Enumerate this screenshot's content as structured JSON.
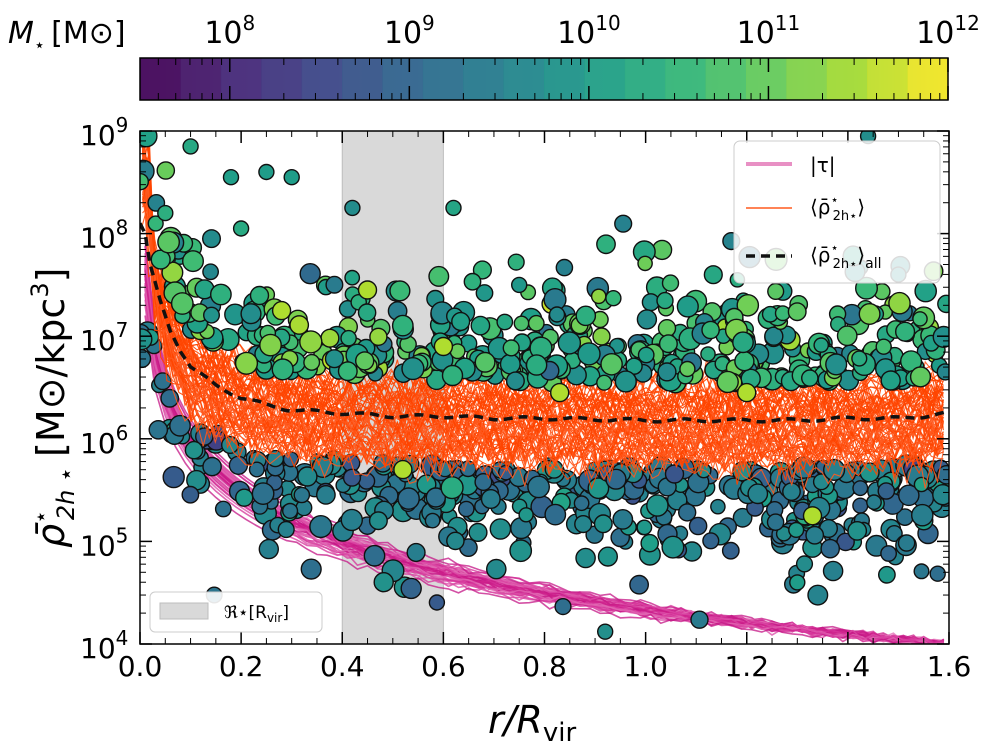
{
  "chart_data": {
    "type": "scatter",
    "title": "",
    "xlabel": "r/R",
    "xlabel_sub": "vir",
    "ylabel": "[M⊙/kpc",
    "ylabel_symbol": "ρ̄",
    "ylabel_sup": "⋆",
    "ylabel_sub": "2h ⋆",
    "ylabel_exp": "3",
    "ylabel_close": "]",
    "xlim": [
      0.0,
      1.6
    ],
    "ylim_log10": [
      4,
      9
    ],
    "x_ticks": [
      "0.0",
      "0.2",
      "0.4",
      "0.6",
      "0.8",
      "1.0",
      "1.2",
      "1.4",
      "1.6"
    ],
    "y_ticks": [
      {
        "base": "10",
        "exp": "4"
      },
      {
        "base": "10",
        "exp": "5"
      },
      {
        "base": "10",
        "exp": "6"
      },
      {
        "base": "10",
        "exp": "7"
      },
      {
        "base": "10",
        "exp": "8"
      },
      {
        "base": "10",
        "exp": "9"
      }
    ],
    "colorbar": {
      "label": "M",
      "label_sub": "⋆",
      "label_unit": "[M⊙]",
      "range_log10": [
        7.5,
        12
      ],
      "ticks": [
        {
          "base": "10",
          "exp": "8"
        },
        {
          "base": "10",
          "exp": "9"
        },
        {
          "base": "10",
          "exp": "10"
        },
        {
          "base": "10",
          "exp": "11"
        },
        {
          "base": "10",
          "exp": "12"
        }
      ],
      "colormap": "viridis"
    },
    "shaded_region": {
      "x_range": [
        0.4,
        0.6
      ],
      "label": "ℜ⋆[R",
      "label_sub": "vir",
      "label_close": "]",
      "color": "#d9d9d9"
    },
    "series": [
      {
        "name": "|τ|",
        "kind": "lines",
        "color": "#cc1f8a",
        "note": "tidal density profiles, steep decline from ~1e7 at r=0.05 to ~1e4 at r=1.6"
      },
      {
        "name": "⟨ρ̄⋆ 2h⋆⟩",
        "kind": "lines",
        "color": "#ff4500",
        "note": "individual mean 2-halo stellar density profiles, ~1e6 plateau"
      },
      {
        "name": "⟨ρ̄⋆ 2h⋆⟩ all",
        "kind": "dashed",
        "color": "#111111",
        "x": [
          0.0,
          0.01,
          0.02,
          0.04,
          0.06,
          0.08,
          0.1,
          0.15,
          0.2,
          0.25,
          0.3,
          0.4,
          0.5,
          0.6,
          0.7,
          0.8,
          0.9,
          1.0,
          1.1,
          1.2,
          1.3,
          1.4,
          1.5,
          1.55,
          1.6
        ],
        "y_log10": [
          8.1,
          8.0,
          7.7,
          7.35,
          7.05,
          6.85,
          6.7,
          6.52,
          6.4,
          6.33,
          6.28,
          6.25,
          6.22,
          6.22,
          6.2,
          6.2,
          6.19,
          6.18,
          6.18,
          6.18,
          6.18,
          6.2,
          6.2,
          6.22,
          6.25
        ]
      }
    ],
    "legend": {
      "placement": "top-right",
      "entries": [
        {
          "text": "|τ|",
          "color": "#e890c4",
          "style": "solid-thick"
        },
        {
          "text": "⟨ρ̄",
          "text_sup": "⋆",
          "text_sub": "2h⋆",
          "text_close": "⟩",
          "color": "#ff5a1f",
          "style": "solid"
        },
        {
          "text": "⟨ρ̄",
          "text_sup": "⋆",
          "text_sub": "2h⋆",
          "text_close": "⟩",
          "text_tail": "all",
          "color": "#111111",
          "style": "dashed"
        }
      ],
      "shade_legend_placement": "bottom-left"
    }
  }
}
